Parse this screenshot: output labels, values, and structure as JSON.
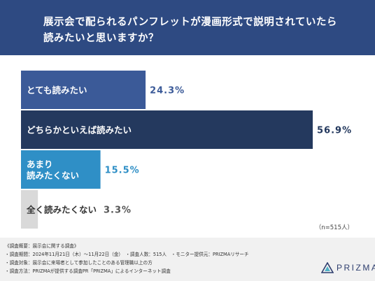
{
  "title": {
    "line1": "展示会で配られるパンフレットが漫画形式で説明されていたら",
    "line2": "読みたいと思いますか？"
  },
  "chart_data": {
    "type": "bar",
    "orientation": "horizontal",
    "categories": [
      "とても読みたい",
      "どちらかといえば読みたい",
      "あまり\n読みたくない",
      "全く読みたくない"
    ],
    "values": [
      24.3,
      56.9,
      15.5,
      3.3
    ],
    "value_labels": [
      "24.3%",
      "56.9%",
      "15.5%",
      "3.3%"
    ],
    "xlim": [
      0,
      56.9
    ],
    "grid": false,
    "colors": [
      "#3b5a98",
      "#24395e",
      "#2f8fc6",
      "#d9d9d9"
    ],
    "label_colors": [
      "#ffffff",
      "#ffffff",
      "#ffffff",
      "#333333"
    ],
    "value_colors": [
      "#3b5a98",
      "#24395e",
      "#2f8fc6",
      "#555555"
    ],
    "note": "（n=515人）"
  },
  "footer": {
    "line1": "《調査概要：展示会に関する調査》",
    "line2": "・調査期間：2024年11月21日（木）〜11月22日（金）　・調査人数：515人　・モニター提供元：PRIZMAリサーチ",
    "line3": "・調査対象：展示会に来場者として参加したことのある管理職以上の方",
    "line4": "・調査方法：PRIZMAが提供する調査PR「PRIZMA」によるインターネット調査"
  },
  "logo": {
    "text": "PRIZMA",
    "icon": "prizma-triangle-logo"
  }
}
